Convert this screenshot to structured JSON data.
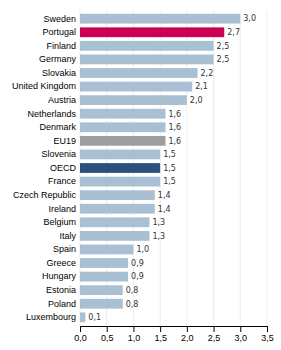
{
  "chart_data": {
    "type": "bar",
    "orientation": "horizontal",
    "categories": [
      "Luxembourg",
      "Poland",
      "Estonia",
      "Hungary",
      "Greece",
      "Spain",
      "Italy",
      "Belgium",
      "Ireland",
      "Czech Republic",
      "France",
      "OECD",
      "Slovenia",
      "EU19",
      "Denmark",
      "Netherlands",
      "Austria",
      "United Kingdom",
      "Slovakia",
      "Germany",
      "Finland",
      "Portugal",
      "Sweden"
    ],
    "values": [
      0.1,
      0.8,
      0.8,
      0.9,
      0.9,
      1.0,
      1.3,
      1.3,
      1.4,
      1.4,
      1.5,
      1.5,
      1.5,
      1.6,
      1.6,
      1.6,
      2.0,
      2.1,
      2.2,
      2.5,
      2.5,
      2.7,
      3.0
    ],
    "value_labels": [
      "0,1",
      "0,8",
      "0,8",
      "0,9",
      "0,9",
      "1,0",
      "1,3",
      "1,3",
      "1,4",
      "1,4",
      "1,5",
      "1,5",
      "1,5",
      "1,6",
      "1,6",
      "1,6",
      "2,0",
      "2,1",
      "2,2",
      "2,5",
      "2,5",
      "2,7",
      "3,0"
    ],
    "data_labels": true,
    "colors": [
      "#a8bfd4",
      "#a8bfd4",
      "#a8bfd4",
      "#a8bfd4",
      "#a8bfd4",
      "#a8bfd4",
      "#a8bfd4",
      "#a8bfd4",
      "#a8bfd4",
      "#a8bfd4",
      "#a8bfd4",
      "#2b4f7f",
      "#a8bfd4",
      "#9e9e9e",
      "#a8bfd4",
      "#a8bfd4",
      "#a8bfd4",
      "#a8bfd4",
      "#a8bfd4",
      "#a8bfd4",
      "#a8bfd4",
      "#cc0055",
      "#a8bfd4"
    ],
    "xlim": [
      0,
      3.5
    ],
    "xticks": [
      {
        "value": 0.0,
        "label": "0,0"
      },
      {
        "value": 0.5,
        "label": "0,5"
      },
      {
        "value": 1.0,
        "label": "1,0"
      },
      {
        "value": 1.5,
        "label": "1,5"
      },
      {
        "value": 2.0,
        "label": "2,0"
      },
      {
        "value": 2.5,
        "label": "2,5"
      },
      {
        "value": 3.0,
        "label": "3,0"
      },
      {
        "value": 3.5,
        "label": "3,5"
      }
    ],
    "grid": true
  }
}
